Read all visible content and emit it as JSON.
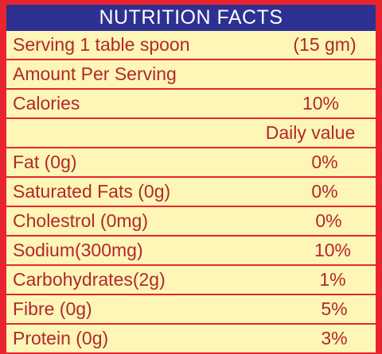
{
  "header": {
    "title": "NUTRITION FACTS"
  },
  "rows": [
    {
      "label": "Serving 1 table spoon",
      "value": "(15 gm)"
    },
    {
      "label": "Amount Per Serving",
      "value": ""
    },
    {
      "label": "Calories",
      "value": "10%"
    },
    {
      "label": "",
      "value": "Daily value"
    },
    {
      "label": "Fat (0g)",
      "value": "0%"
    },
    {
      "label": "Saturated Fats (0g)",
      "value": "0%"
    },
    {
      "label": "Cholestrol (0mg)",
      "value": "0%"
    },
    {
      "label": "Sodium(300mg)",
      "value": "10%"
    },
    {
      "label": "Carbohydrates(2g)",
      "value": "1%"
    },
    {
      "label": "Fibre (0g)",
      "value": "5%"
    },
    {
      "label": "Protein (0g)",
      "value": "3%"
    }
  ],
  "colors": {
    "border": "#e8242f",
    "header_bg": "#2d3191",
    "panel_bg": "#fdf6b6",
    "text": "#b3272d"
  }
}
